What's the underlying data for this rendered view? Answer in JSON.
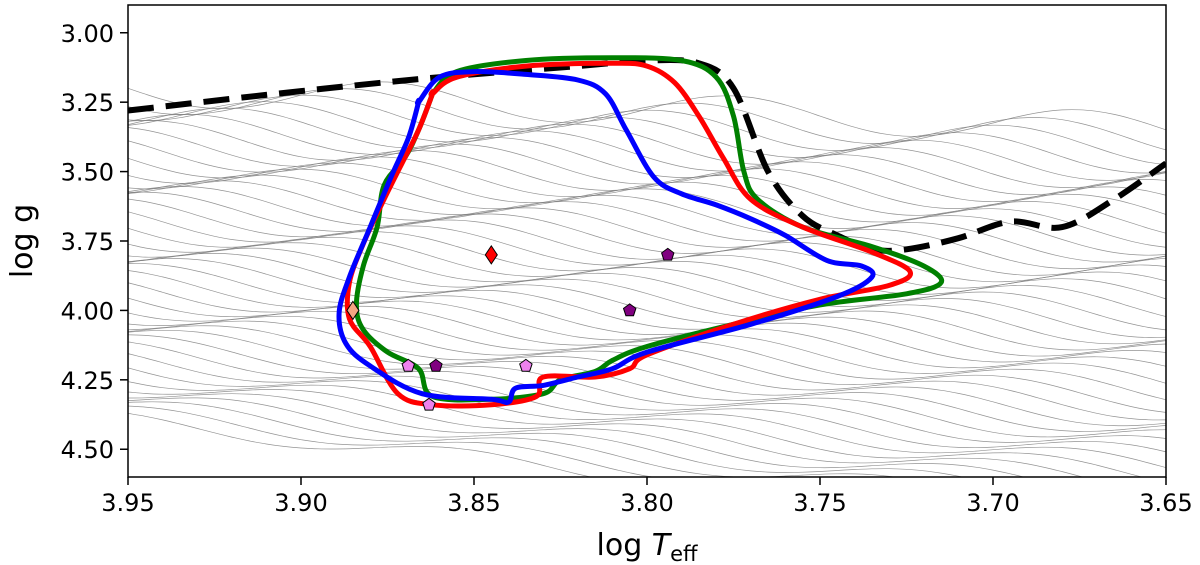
{
  "chart_data": {
    "type": "line",
    "title": "",
    "xlabel": "log T_eff",
    "xlabel_main": "log ",
    "xlabel_T": "T",
    "xlabel_sub": "eff",
    "ylabel": "log g",
    "xlim": [
      3.95,
      3.65
    ],
    "ylim": [
      4.6,
      2.9
    ],
    "x_ticks": [
      3.95,
      3.9,
      3.85,
      3.8,
      3.75,
      3.7,
      3.65
    ],
    "x_tick_labels": [
      "3.95",
      "3.90",
      "3.85",
      "3.80",
      "3.75",
      "3.70",
      "3.65"
    ],
    "y_ticks": [
      3.0,
      3.25,
      3.5,
      3.75,
      4.0,
      4.25,
      4.5
    ],
    "y_tick_labels": [
      "3.00",
      "3.25",
      "3.50",
      "3.75",
      "4.00",
      "4.25",
      "4.50"
    ],
    "grid": false,
    "colors": {
      "green": "#008000",
      "red": "#ff0000",
      "blue": "#0000ff",
      "boundary": "#000000",
      "track": "#808080",
      "purple": "#800080",
      "violet": "#ee82ee",
      "orange": "#f4a582"
    },
    "boundary_line": {
      "name": "dashed-boundary",
      "x": [
        3.95,
        3.9,
        3.86,
        3.82,
        3.8,
        3.785,
        3.775,
        3.765,
        3.755,
        3.745,
        3.735,
        3.725,
        3.71,
        3.695,
        3.68,
        3.665,
        3.65
      ],
      "y": [
        3.28,
        3.21,
        3.16,
        3.12,
        3.1,
        3.11,
        3.2,
        3.5,
        3.66,
        3.73,
        3.78,
        3.78,
        3.74,
        3.68,
        3.7,
        3.6,
        3.47
      ]
    },
    "series": [
      {
        "name": "green-contour",
        "color": "#008000",
        "x": [
          3.862,
          3.855,
          3.835,
          3.81,
          3.79,
          3.78,
          3.775,
          3.772,
          3.768,
          3.755,
          3.735,
          3.72,
          3.715,
          3.725,
          3.75,
          3.775,
          3.8,
          3.81,
          3.815,
          3.825,
          3.83,
          3.845,
          3.862,
          3.866,
          3.875,
          3.882,
          3.884,
          3.882,
          3.878,
          3.876,
          3.87,
          3.866,
          3.862
        ],
        "y": [
          3.22,
          3.14,
          3.1,
          3.09,
          3.1,
          3.16,
          3.3,
          3.5,
          3.6,
          3.7,
          3.77,
          3.84,
          3.9,
          3.94,
          3.98,
          4.05,
          4.13,
          4.18,
          4.22,
          4.25,
          4.3,
          4.32,
          4.31,
          4.21,
          4.15,
          4.07,
          3.98,
          3.84,
          3.7,
          3.55,
          3.45,
          3.35,
          3.22
        ]
      },
      {
        "name": "red-contour",
        "color": "#ff0000",
        "x": [
          3.862,
          3.855,
          3.835,
          3.81,
          3.8,
          3.792,
          3.785,
          3.778,
          3.77,
          3.755,
          3.735,
          3.724,
          3.73,
          3.75,
          3.775,
          3.8,
          3.805,
          3.815,
          3.83,
          3.832,
          3.845,
          3.862,
          3.872,
          3.88,
          3.886,
          3.886,
          3.882,
          3.876,
          3.87,
          3.866,
          3.862
        ],
        "y": [
          3.22,
          3.16,
          3.12,
          3.11,
          3.12,
          3.18,
          3.3,
          3.45,
          3.6,
          3.7,
          3.79,
          3.86,
          3.91,
          3.96,
          4.05,
          4.16,
          4.21,
          4.24,
          4.24,
          4.31,
          4.34,
          4.34,
          4.3,
          4.13,
          4.03,
          3.9,
          3.76,
          3.6,
          3.45,
          3.35,
          3.22
        ]
      },
      {
        "name": "blue-contour",
        "color": "#0000ff",
        "x": [
          3.866,
          3.86,
          3.85,
          3.835,
          3.82,
          3.812,
          3.806,
          3.798,
          3.79,
          3.78,
          3.77,
          3.76,
          3.748,
          3.738,
          3.735,
          3.745,
          3.77,
          3.8,
          3.81,
          3.82,
          3.83,
          3.838,
          3.84,
          3.845,
          3.865,
          3.88,
          3.887,
          3.889,
          3.886,
          3.88,
          3.874,
          3.869,
          3.866
        ],
        "y": [
          3.25,
          3.16,
          3.14,
          3.15,
          3.17,
          3.22,
          3.35,
          3.52,
          3.58,
          3.62,
          3.67,
          3.73,
          3.82,
          3.84,
          3.88,
          3.95,
          4.05,
          4.15,
          4.21,
          4.24,
          4.27,
          4.28,
          4.33,
          4.32,
          4.3,
          4.2,
          4.12,
          4.01,
          3.88,
          3.7,
          3.52,
          3.38,
          3.25
        ]
      }
    ],
    "markers": [
      {
        "name": "red-diamond",
        "shape": "diamond",
        "color": "#ff0000",
        "x": 3.845,
        "y": 3.8
      },
      {
        "name": "purple-pentagon-1",
        "shape": "pentagon",
        "color": "#800080",
        "x": 3.794,
        "y": 3.8
      },
      {
        "name": "purple-pentagon-2",
        "shape": "pentagon",
        "color": "#800080",
        "x": 3.805,
        "y": 4.0
      },
      {
        "name": "purple-pentagon-3",
        "shape": "pentagon",
        "color": "#800080",
        "x": 3.861,
        "y": 4.2
      },
      {
        "name": "violet-pentagon-1",
        "shape": "pentagon",
        "color": "#ee82ee",
        "x": 3.869,
        "y": 4.2
      },
      {
        "name": "violet-pentagon-2",
        "shape": "pentagon",
        "color": "#ee82ee",
        "x": 3.835,
        "y": 4.2
      },
      {
        "name": "violet-pentagon-3",
        "shape": "pentagon",
        "color": "#ee82ee",
        "x": 3.863,
        "y": 4.34
      },
      {
        "name": "orange-diamond",
        "shape": "diamond",
        "color": "#f4a582",
        "x": 3.885,
        "y": 4.0
      }
    ],
    "tracks": {
      "description": "thin grey evolutionary tracks",
      "count": 44,
      "ymin": 3.2,
      "ymax": 4.4
    }
  }
}
